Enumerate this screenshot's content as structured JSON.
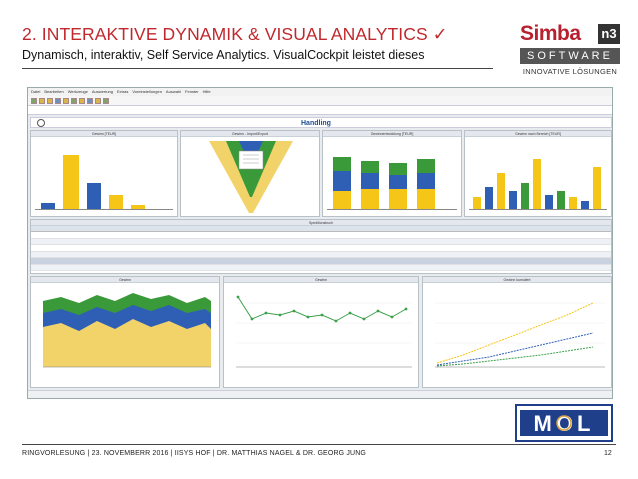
{
  "slide": {
    "title": "2. INTERAKTIVE  DYNAMIK & VISUAL ANALYTICS ✓",
    "subtitle": "Dynamisch, interaktiv, Self Service Analytics. VisualCockpit leistet dieses",
    "footer": "RINGVORLESUNG | 23. NOVEMBERR 2016 | IISYS HOF | DR. MATTHIAS NAGEL & DR. GEORG JUNG",
    "page_number": "12"
  },
  "logo": {
    "brand": "Simba",
    "superscript": "n3",
    "software": "SOFTWARE",
    "tagline": "INNOVATIVE LÖSUNGEN"
  },
  "partner_logo": {
    "text": "MOL"
  },
  "app": {
    "menu": [
      "Datei",
      "Bearbeiten",
      "Werkzeuge",
      "Auswertung",
      "Extras",
      "Voreinstellungen",
      "Auswahl",
      "Fenster",
      "Hilfe"
    ],
    "dashboard_title": "Handling",
    "panels": {
      "gewinn": "Gewinn [TEUR]",
      "import_export": "Gewinn - Import/Export",
      "gewinnentwicklung": "Gewinnentwicklung [TEUR]",
      "gewinn_bereich": "Gewinn nach Bereich [TEUR]",
      "speditionsbuch": "Speditionsbuch",
      "gewinn_area": "Gewinn",
      "gewinn_line": "Gewinn",
      "gewinn_kumuliert": "Gewinn kumuliert"
    }
  },
  "colors": {
    "accent_red": "#c0282d",
    "bar_yellow": "#f5c518",
    "bar_blue": "#2f5fb5",
    "bar_green": "#3a9a3a",
    "line_green": "#3aa04a"
  }
}
